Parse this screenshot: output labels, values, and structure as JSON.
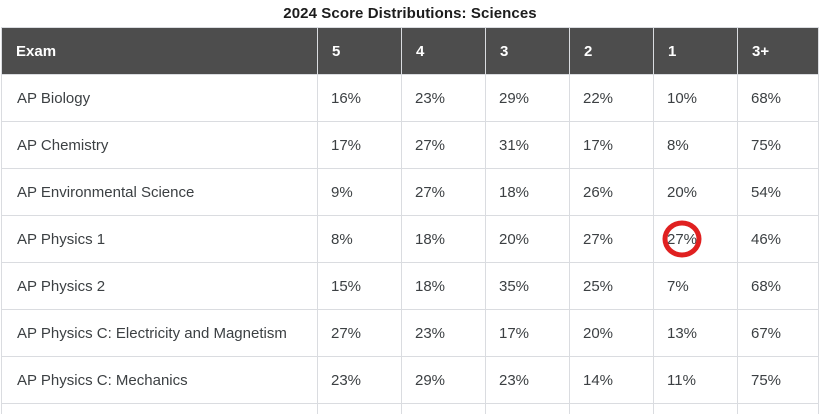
{
  "title": "2024 Score Distributions: Sciences",
  "chart_data": {
    "type": "table",
    "title": "2024 Score Distributions: Sciences",
    "columns": [
      "Exam",
      "5",
      "4",
      "3",
      "2",
      "1",
      "3+"
    ],
    "rows": [
      {
        "exam": "AP Biology",
        "values": [
          "16%",
          "23%",
          "29%",
          "22%",
          "10%",
          "68%"
        ]
      },
      {
        "exam": "AP Chemistry",
        "values": [
          "17%",
          "27%",
          "31%",
          "17%",
          "8%",
          "75%"
        ]
      },
      {
        "exam": "AP Environmental Science",
        "values": [
          "9%",
          "27%",
          "18%",
          "26%",
          "20%",
          "54%"
        ]
      },
      {
        "exam": "AP Physics 1",
        "values": [
          "8%",
          "18%",
          "20%",
          "27%",
          "27%",
          "46%"
        ]
      },
      {
        "exam": "AP Physics 2",
        "values": [
          "15%",
          "18%",
          "35%",
          "25%",
          "7%",
          "68%"
        ]
      },
      {
        "exam": "AP Physics C: Electricity and Magnetism",
        "values": [
          "27%",
          "23%",
          "17%",
          "20%",
          "13%",
          "67%"
        ]
      },
      {
        "exam": "AP Physics C: Mechanics",
        "values": [
          "23%",
          "29%",
          "23%",
          "14%",
          "11%",
          "75%"
        ]
      }
    ],
    "annotation": {
      "shape": "red-circle",
      "row": "AP Physics 1",
      "column": "1",
      "value": "27%",
      "color": "#e02020"
    }
  },
  "colors": {
    "header_bg": "#4d4d4d",
    "header_text": "#ffffff",
    "body_text": "#3c4043",
    "border": "#dadce0",
    "annotation": "#e02020"
  }
}
